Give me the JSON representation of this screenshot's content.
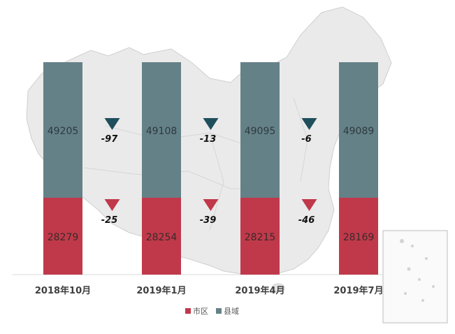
{
  "chart_data": {
    "type": "bar",
    "stacked": true,
    "categories": [
      "2018年10月",
      "2019年1月",
      "2019年4月",
      "2019年7月"
    ],
    "series": [
      {
        "name": "市区",
        "values": [
          28279,
          28254,
          28215,
          28169
        ],
        "color": "#c0394a"
      },
      {
        "name": "县域",
        "values": [
          49205,
          49108,
          49095,
          49089
        ],
        "color": "#658188"
      }
    ],
    "changes": {
      "市区": [
        "-25",
        "-39",
        "-46"
      ],
      "县域": [
        "-97",
        "-13",
        "-6"
      ]
    },
    "change_marker_colors": {
      "市区": "#c0394a",
      "县域": "#1f4f5c"
    },
    "background": "grayscale map of China",
    "legend_position": "bottom",
    "grid": false
  }
}
